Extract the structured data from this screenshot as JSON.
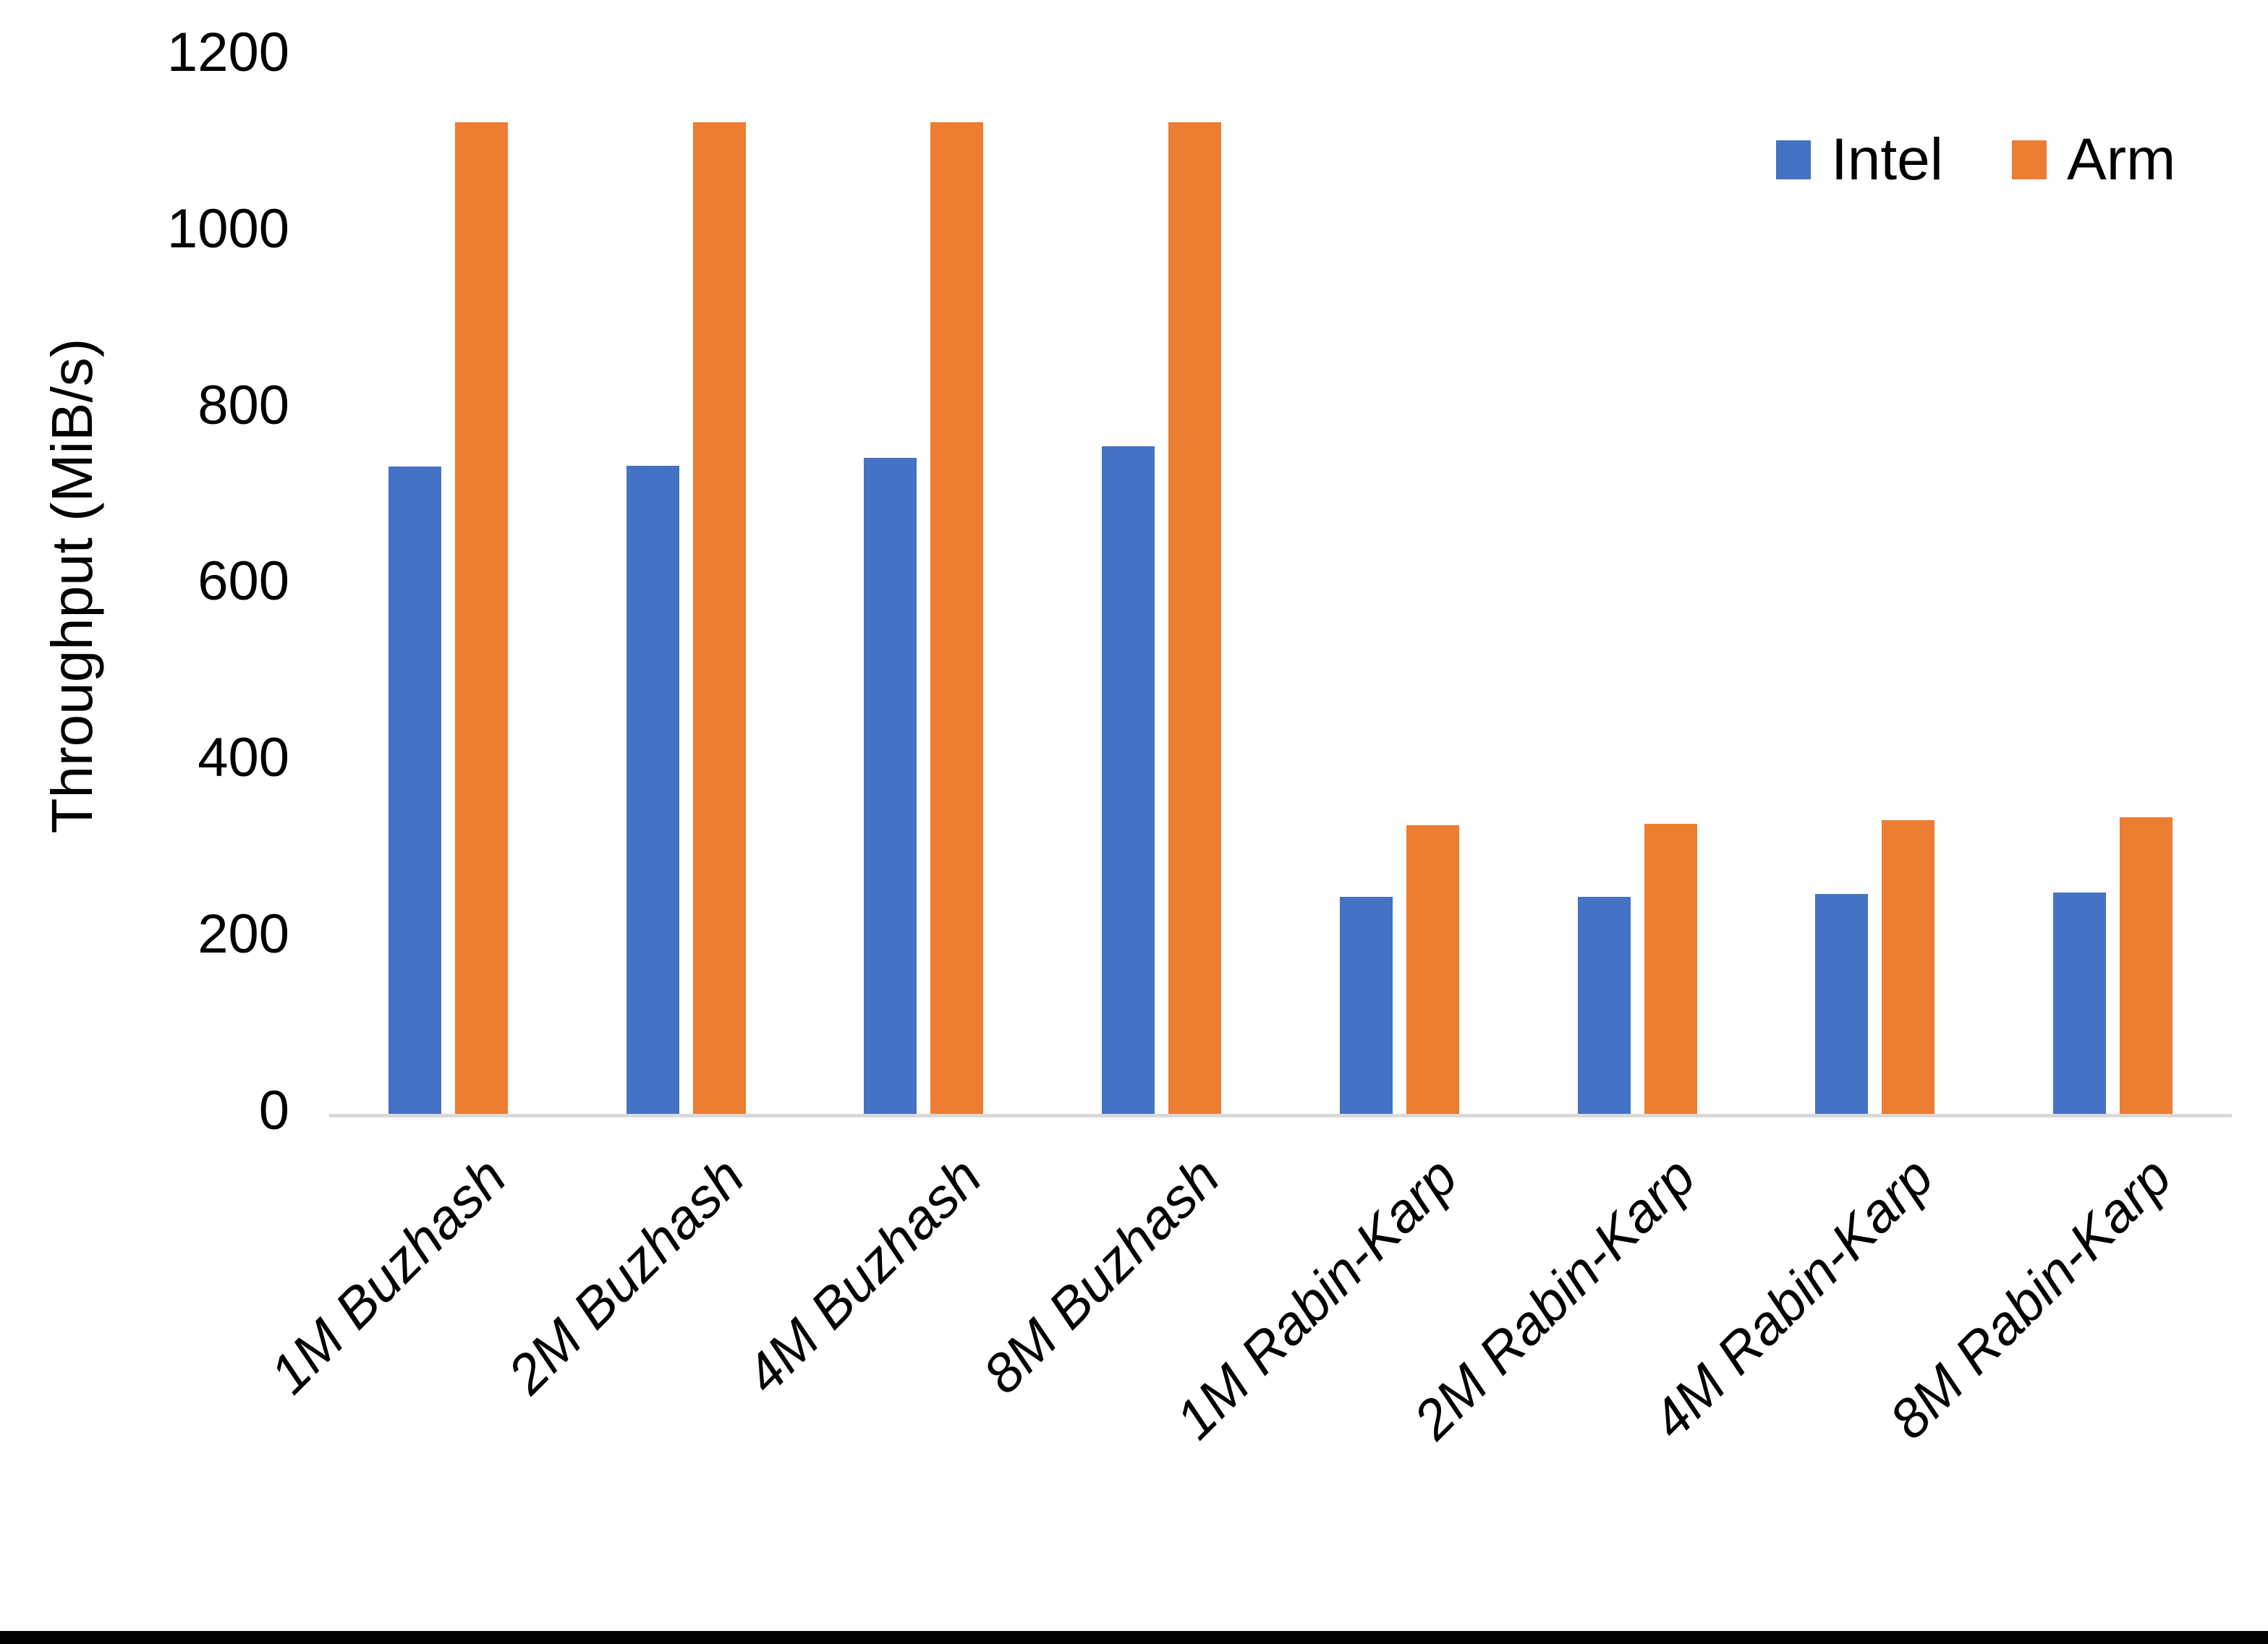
{
  "page": {
    "background": "#ffffff",
    "bottom_border_color": "#000000"
  },
  "chart_data": {
    "type": "bar",
    "title": "",
    "ylabel": "Throughput (MiB/s)",
    "xlabel": "",
    "categories": [
      "1M Buzhash",
      "2M Buzhash",
      "4M Buzhash",
      "8M Buzhash",
      "1M Rabin-Karp",
      "2M Rabin-Karp",
      "4M Rabin-Karp",
      "8M Rabin-Karp"
    ],
    "series": [
      {
        "name": "Intel",
        "color": "#4472C4",
        "values": [
          734,
          735,
          744,
          757,
          246,
          246,
          249,
          251
        ]
      },
      {
        "name": "Arm",
        "color": "#ED7D31",
        "values": [
          1124,
          1124,
          1124,
          1124,
          327,
          329,
          333,
          336
        ]
      }
    ],
    "ylim": [
      0,
      1200
    ],
    "yticks": [
      0,
      200,
      400,
      600,
      800,
      1000,
      1200
    ],
    "grid": "off",
    "legend_position": "top-right",
    "axis_line_color": "#d9d9d9",
    "text_color": "#000000",
    "x_label_rotation_deg": -45,
    "x_label_style": "italic"
  }
}
